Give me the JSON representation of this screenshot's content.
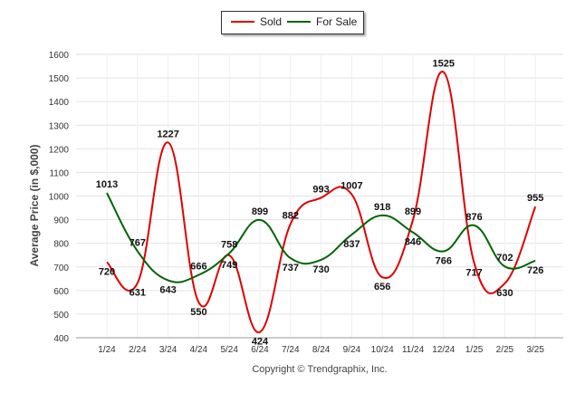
{
  "chart_data": {
    "type": "line",
    "categories": [
      "1/24",
      "2/24",
      "3/24",
      "4/24",
      "5/24",
      "6/24",
      "7/24",
      "8/24",
      "9/24",
      "10/24",
      "11/24",
      "12/24",
      "1/25",
      "2/25",
      "3/25"
    ],
    "series": [
      {
        "name": "Sold",
        "color": "#e00000",
        "values": [
          720,
          631,
          1227,
          550,
          749,
          424,
          882,
          993,
          1007,
          656,
          899,
          1525,
          717,
          630,
          955
        ]
      },
      {
        "name": "For Sale",
        "color": "#006400",
        "values": [
          1013,
          767,
          643,
          666,
          758,
          899,
          737,
          730,
          837,
          918,
          846,
          766,
          876,
          702,
          726
        ]
      }
    ],
    "ylabel": "Average Price (in $,000)",
    "ylim": [
      400,
      1600
    ],
    "yticks": [
      400,
      500,
      600,
      700,
      800,
      900,
      1000,
      1100,
      1200,
      1300,
      1400,
      1500,
      1600
    ],
    "grid": true,
    "legend_position": "top-center"
  },
  "legend": {
    "sold_label": "Sold",
    "for_sale_label": "For Sale"
  },
  "footer": {
    "copyright": "Copyright © Trendgraphix, Inc."
  }
}
